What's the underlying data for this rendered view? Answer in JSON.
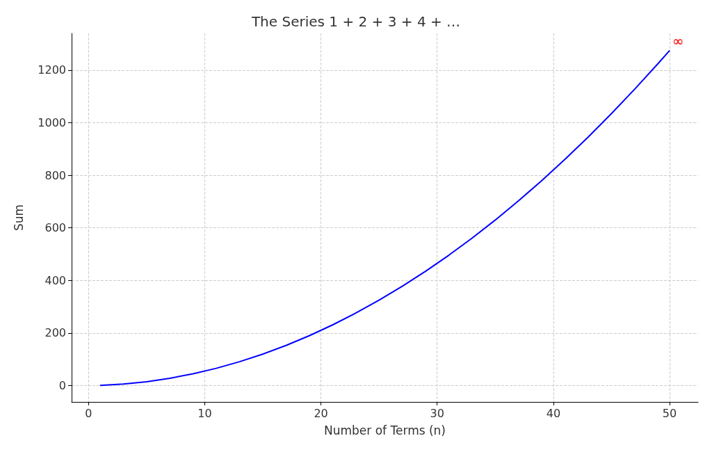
{
  "chart_data": {
    "type": "line",
    "title": "The Series 1 + 2 + 3 + 4 + …",
    "xlabel": "Number of Terms (n)",
    "ylabel": "Sum",
    "x": [
      1,
      3,
      5,
      7,
      9,
      11,
      13,
      15,
      17,
      19,
      21,
      23,
      25,
      27,
      29,
      31,
      33,
      35,
      37,
      39,
      41,
      43,
      45,
      47,
      49,
      50
    ],
    "series": [
      {
        "color": "#0000ff",
        "values": [
          1,
          6,
          15,
          28,
          45,
          66,
          91,
          120,
          153,
          190,
          231,
          276,
          325,
          378,
          435,
          496,
          561,
          630,
          703,
          780,
          861,
          946,
          1035,
          1128,
          1225,
          1275
        ]
      }
    ],
    "xlim": [
      -1.45,
      52.45
    ],
    "ylim": [
      -62,
      1340
    ],
    "xticks": [
      0,
      10,
      20,
      30,
      40,
      50
    ],
    "yticks": [
      0,
      200,
      400,
      600,
      800,
      1000,
      1200
    ],
    "grid": true,
    "marker": "none",
    "line_style": "solid",
    "annotations": [
      {
        "text": "∞",
        "x": 50,
        "y": 1275
      }
    ]
  }
}
